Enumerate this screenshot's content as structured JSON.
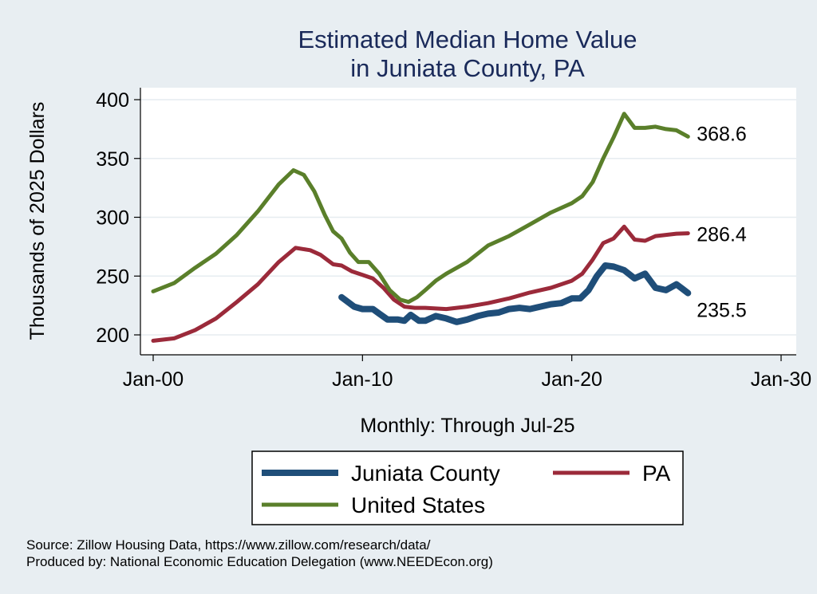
{
  "chart_data": {
    "type": "line",
    "title": [
      "Estimated Median Home Value",
      "in Juniata County, PA"
    ],
    "xlabel": "Monthly: Through Jul-25",
    "ylabel": "Thousands of 2025 Dollars",
    "xlim": [
      2000,
      2030
    ],
    "ylim": [
      185,
      412
    ],
    "x_ticks": [
      {
        "value": 2000,
        "label": "Jan-00"
      },
      {
        "value": 2010,
        "label": "Jan-10"
      },
      {
        "value": 2020,
        "label": "Jan-20"
      },
      {
        "value": 2030,
        "label": "Jan-30"
      }
    ],
    "y_ticks": [
      200,
      250,
      300,
      350,
      400
    ],
    "grid": true,
    "legend_position": "bottom",
    "series": [
      {
        "name": "Juniata County",
        "color": "#1f4e79",
        "end_label": "235.5",
        "points": [
          [
            2009.0,
            232
          ],
          [
            2009.3,
            228
          ],
          [
            2009.6,
            224
          ],
          [
            2010.0,
            222
          ],
          [
            2010.5,
            222
          ],
          [
            2010.8,
            218
          ],
          [
            2011.2,
            213
          ],
          [
            2011.7,
            213
          ],
          [
            2012.0,
            212
          ],
          [
            2012.3,
            217
          ],
          [
            2012.7,
            212
          ],
          [
            2013.0,
            212
          ],
          [
            2013.5,
            216
          ],
          [
            2014.0,
            214
          ],
          [
            2014.5,
            211
          ],
          [
            2015.0,
            213
          ],
          [
            2015.5,
            216
          ],
          [
            2016.0,
            218
          ],
          [
            2016.5,
            219
          ],
          [
            2017.0,
            222
          ],
          [
            2017.5,
            223
          ],
          [
            2018.0,
            222
          ],
          [
            2018.5,
            224
          ],
          [
            2019.0,
            226
          ],
          [
            2019.5,
            227
          ],
          [
            2020.0,
            231
          ],
          [
            2020.4,
            231
          ],
          [
            2020.8,
            238
          ],
          [
            2021.2,
            250
          ],
          [
            2021.6,
            259
          ],
          [
            2022.0,
            258
          ],
          [
            2022.5,
            255
          ],
          [
            2023.0,
            248
          ],
          [
            2023.5,
            252
          ],
          [
            2024.0,
            240
          ],
          [
            2024.5,
            238
          ],
          [
            2025.0,
            243
          ],
          [
            2025.3,
            239
          ],
          [
            2025.55,
            235.5
          ]
        ]
      },
      {
        "name": "PA",
        "color": "#9b2a3a",
        "end_label": "286.4",
        "points": [
          [
            2000.0,
            195
          ],
          [
            2001.0,
            197
          ],
          [
            2002.0,
            204
          ],
          [
            2003.0,
            214
          ],
          [
            2004.0,
            228
          ],
          [
            2005.0,
            243
          ],
          [
            2006.0,
            262
          ],
          [
            2006.8,
            274
          ],
          [
            2007.5,
            272
          ],
          [
            2008.0,
            268
          ],
          [
            2008.6,
            260
          ],
          [
            2009.0,
            259
          ],
          [
            2009.5,
            254
          ],
          [
            2010.0,
            251
          ],
          [
            2010.5,
            248
          ],
          [
            2011.0,
            240
          ],
          [
            2011.5,
            230
          ],
          [
            2012.0,
            224
          ],
          [
            2012.5,
            223
          ],
          [
            2013.0,
            223
          ],
          [
            2014.0,
            222
          ],
          [
            2015.0,
            224
          ],
          [
            2016.0,
            227
          ],
          [
            2017.0,
            231
          ],
          [
            2018.0,
            236
          ],
          [
            2019.0,
            240
          ],
          [
            2020.0,
            246
          ],
          [
            2020.5,
            252
          ],
          [
            2021.0,
            264
          ],
          [
            2021.5,
            278
          ],
          [
            2022.0,
            282
          ],
          [
            2022.5,
            292
          ],
          [
            2023.0,
            281
          ],
          [
            2023.5,
            280
          ],
          [
            2024.0,
            284
          ],
          [
            2024.5,
            285
          ],
          [
            2025.0,
            286
          ],
          [
            2025.55,
            286.4
          ]
        ]
      },
      {
        "name": "United States",
        "color": "#5a7f2a",
        "end_label": "368.6",
        "points": [
          [
            2000.0,
            237
          ],
          [
            2001.0,
            244
          ],
          [
            2002.0,
            257
          ],
          [
            2003.0,
            269
          ],
          [
            2004.0,
            285
          ],
          [
            2005.0,
            305
          ],
          [
            2006.0,
            328
          ],
          [
            2006.7,
            340
          ],
          [
            2007.2,
            336
          ],
          [
            2007.7,
            322
          ],
          [
            2008.2,
            302
          ],
          [
            2008.6,
            288
          ],
          [
            2009.0,
            282
          ],
          [
            2009.4,
            270
          ],
          [
            2009.8,
            262
          ],
          [
            2010.3,
            262
          ],
          [
            2010.8,
            252
          ],
          [
            2011.3,
            238
          ],
          [
            2011.8,
            230
          ],
          [
            2012.2,
            228
          ],
          [
            2012.6,
            232
          ],
          [
            2013.0,
            238
          ],
          [
            2013.5,
            246
          ],
          [
            2014.0,
            252
          ],
          [
            2015.0,
            262
          ],
          [
            2016.0,
            276
          ],
          [
            2017.0,
            284
          ],
          [
            2018.0,
            294
          ],
          [
            2019.0,
            304
          ],
          [
            2020.0,
            312
          ],
          [
            2020.5,
            318
          ],
          [
            2021.0,
            330
          ],
          [
            2021.5,
            350
          ],
          [
            2022.0,
            368
          ],
          [
            2022.5,
            388
          ],
          [
            2023.0,
            376
          ],
          [
            2023.5,
            376
          ],
          [
            2024.0,
            377
          ],
          [
            2024.5,
            375
          ],
          [
            2025.0,
            374
          ],
          [
            2025.55,
            368.6
          ]
        ]
      }
    ],
    "notes": [
      "Source: Zillow Housing Data, https://www.zillow.com/research/data/",
      "Produced by: National Economic Education Delegation (www.NEEDEcon.org)"
    ]
  }
}
